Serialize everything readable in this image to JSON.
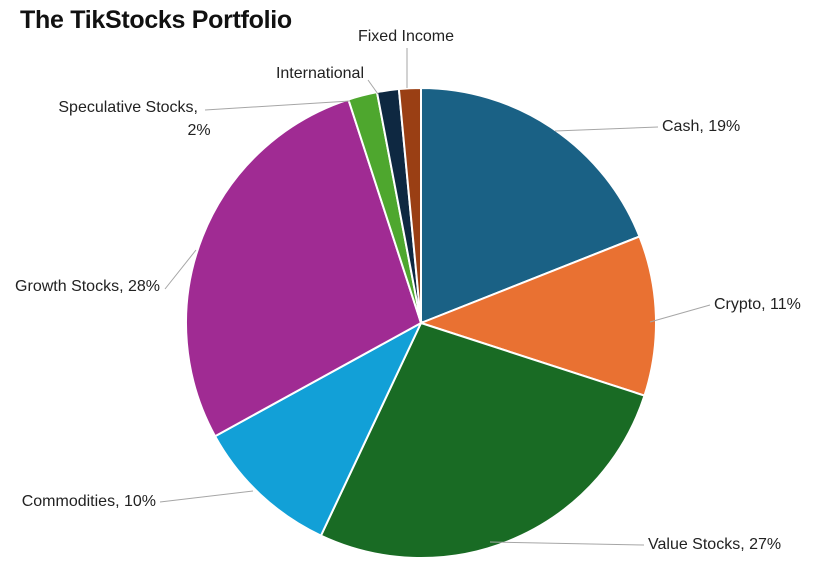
{
  "chart_data": {
    "type": "pie",
    "title": "The TikStocks Portfolio",
    "slices": [
      {
        "label": "Cash",
        "value": 19,
        "color": "#1a6185",
        "label_text": "Cash, 19%"
      },
      {
        "label": "Crypto",
        "value": 11,
        "color": "#e97132",
        "label_text": "Crypto, 11%"
      },
      {
        "label": "Value Stocks",
        "value": 27,
        "color": "#196b24",
        "label_text": "Value Stocks, 27%"
      },
      {
        "label": "Commodities",
        "value": 10,
        "color": "#12a0d7",
        "label_text": "Commodities, 10%"
      },
      {
        "label": "Growth Stocks",
        "value": 28,
        "color": "#a02b93",
        "label_text": "Growth Stocks, 28%"
      },
      {
        "label": "Speculative Stocks",
        "value": 2,
        "color": "#4ea72e",
        "label_lines": [
          "Speculative Stocks,",
          "2%"
        ]
      },
      {
        "label": "International",
        "value": 1.5,
        "color": "#0e2841",
        "label_text": "International"
      },
      {
        "label": "Fixed Income",
        "value": 1.5,
        "color": "#9a3f14",
        "label_text": "Fixed Income"
      }
    ],
    "start_angle_deg": 0,
    "direction": "clockwise",
    "legend": "none",
    "data_labels": "outside with leader lines"
  }
}
